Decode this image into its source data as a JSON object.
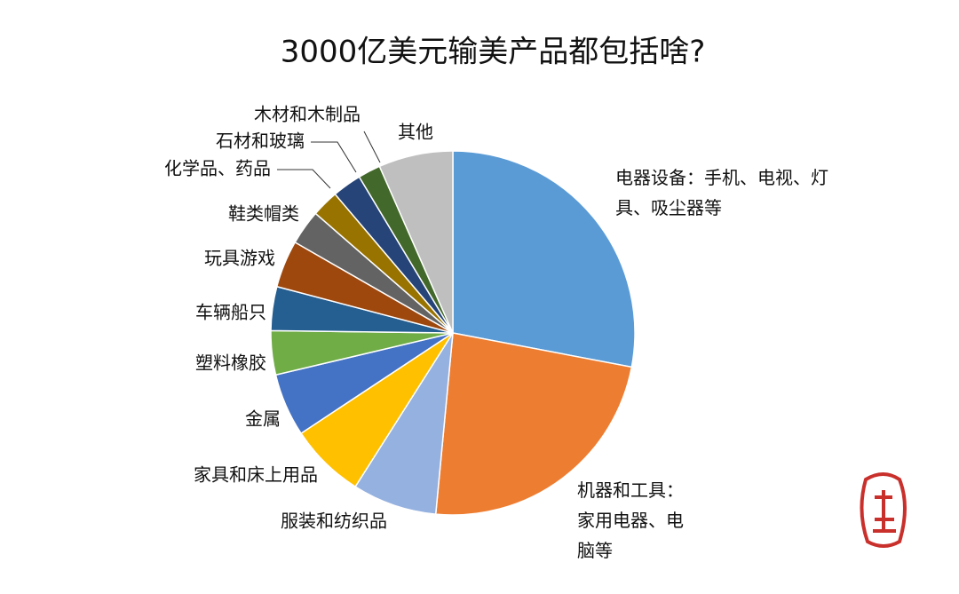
{
  "chart_data": {
    "type": "pie",
    "title": "3000亿美元输美产品都包括啥?",
    "categories": [
      "电器设备：手机、电视、灯具、吸尘器等",
      "机器和工具：家用电器、电脑等",
      "服装和纺织品",
      "家具和床上用品",
      "金属",
      "塑料橡胶",
      "车辆船只",
      "玩具游戏",
      "鞋类帽类",
      "化学品、药品",
      "石材和玻璃",
      "木材和木制品",
      "其他"
    ],
    "values": [
      28,
      23.5,
      7.5,
      6.7,
      5.6,
      3.9,
      3.9,
      4.2,
      3.1,
      2.4,
      2.6,
      2,
      6.6
    ],
    "colors": [
      "#5b9bd5",
      "#ed7d31",
      "#95b1e0",
      "#ffc000",
      "#4472c4",
      "#70ad47",
      "#255e91",
      "#9e480e",
      "#636363",
      "#997300",
      "#264478",
      "#43682b",
      "#bfbfbf"
    ]
  }
}
